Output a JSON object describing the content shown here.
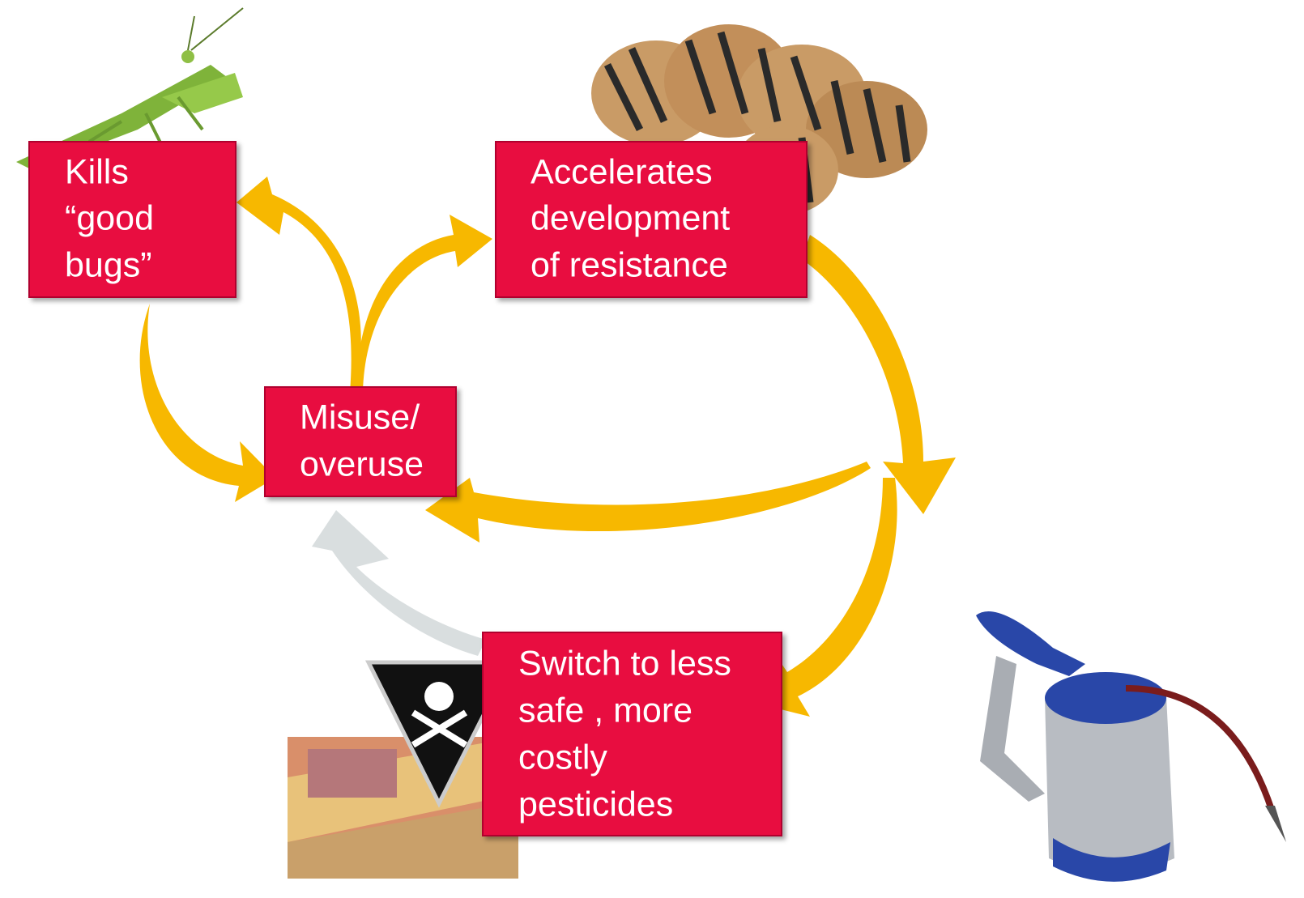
{
  "nodes": [
    {
      "lines": [
        "Kills",
        "“good",
        "bugs”"
      ]
    },
    {
      "lines": [
        "Accelerates",
        "development",
        "of resistance"
      ]
    },
    {
      "lines": [
        "Misuse/",
        "overuse"
      ]
    },
    {
      "lines": [
        "Switch to less",
        "safe , more",
        "costly",
        "pesticides"
      ]
    }
  ]
}
